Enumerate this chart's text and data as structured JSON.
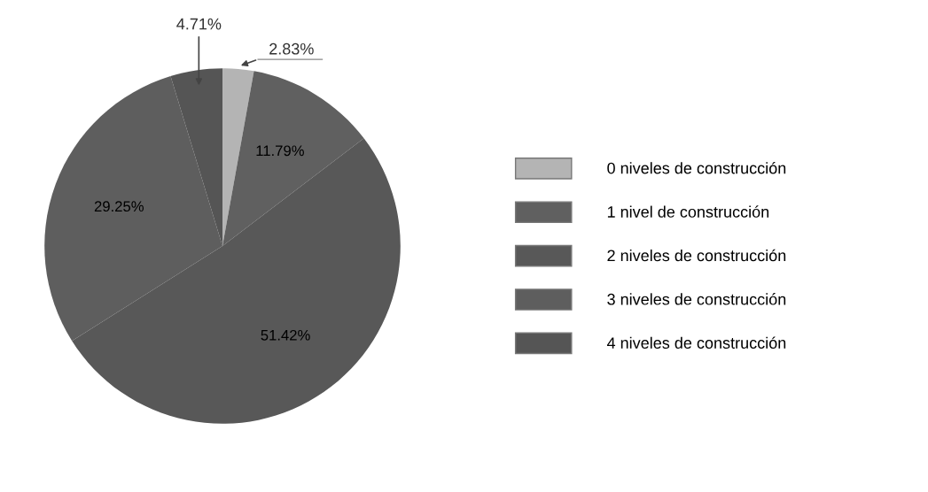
{
  "chart_data": {
    "type": "pie",
    "categories": [
      "0 niveles de construcción",
      "1 nivel de construcción",
      "2 niveles de construcción",
      "3 niveles de construcción",
      "4 niveles de construcción"
    ],
    "values": [
      2.83,
      11.79,
      51.42,
      29.25,
      4.71
    ],
    "value_labels": [
      "2.83%",
      "11.79%",
      "51.42%",
      "29.25%",
      "4.71%"
    ],
    "colors": [
      "#b4b4b4",
      "#606060",
      "#585858",
      "#5e5e5e",
      "#555555"
    ],
    "legend": "right"
  }
}
